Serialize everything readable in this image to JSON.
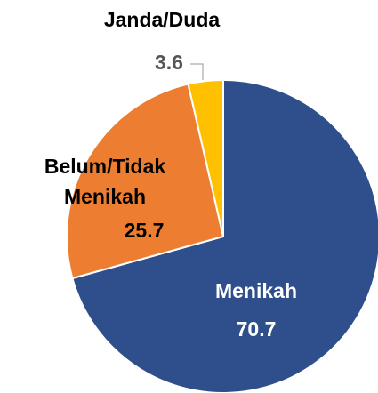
{
  "chart_data": {
    "type": "pie",
    "categories": [
      "Menikah",
      "Belum/Tidak Menikah",
      "Janda/Duda"
    ],
    "values": [
      70.7,
      25.7,
      3.6
    ],
    "colors": [
      "#2F4F8C",
      "#ED7D31",
      "#FFC000"
    ]
  }
}
